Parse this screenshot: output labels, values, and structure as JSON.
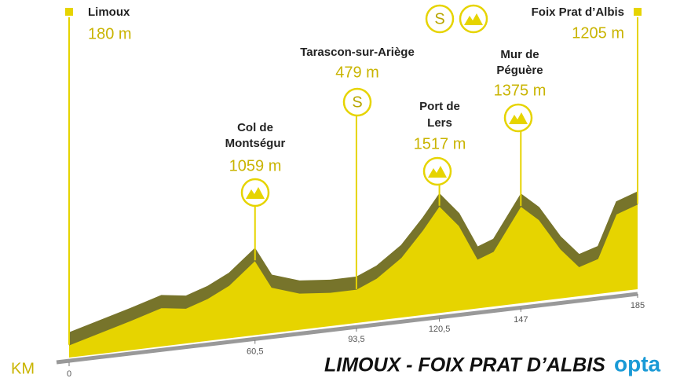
{
  "chart_data": {
    "type": "area",
    "title": "LIMOUX - FOIX PRAT D’ALBIS",
    "x_label": "KM",
    "brand": "opta",
    "x": [
      0,
      10,
      20,
      30,
      38,
      45,
      52,
      60.5,
      66,
      75,
      85,
      93.5,
      100,
      108,
      115,
      120.5,
      127,
      133,
      138,
      147,
      153,
      160,
      166,
      172,
      178,
      185
    ],
    "values": [
      180,
      300,
      420,
      550,
      500,
      600,
      750,
      1059,
      650,
      520,
      480,
      479,
      600,
      850,
      1200,
      1517,
      1200,
      700,
      780,
      1375,
      1150,
      700,
      420,
      500,
      1100,
      1205
    ],
    "color": "#e6d400",
    "edge_color": "#77742b",
    "xlim": [
      0,
      185
    ],
    "xticks": [
      0,
      {
        "value": 60.5,
        "label": "60,5"
      },
      {
        "value": 93.5,
        "label": "93,5"
      },
      {
        "value": 120.5,
        "label": "120,5"
      },
      147,
      185
    ],
    "annotations": [
      {
        "label": [
          "Limoux"
        ],
        "x": 0,
        "value": 180,
        "value_label": "180 m",
        "icons": []
      },
      {
        "label": [
          "Col de",
          "Montségur"
        ],
        "x": 60.5,
        "value": 1059,
        "value_label": "1059 m",
        "icons": [
          "climb"
        ]
      },
      {
        "label": [
          "Tarascon-sur-Ariège"
        ],
        "x": 93.5,
        "value": 479,
        "value_label": "479 m",
        "icons": [
          "S"
        ]
      },
      {
        "label": [
          "Port de",
          "Lers"
        ],
        "x": 120.5,
        "value": 1517,
        "value_label": "1517 m",
        "icons": [
          "climb"
        ]
      },
      {
        "label": [
          "Mur de",
          "Péguère"
        ],
        "x": 147,
        "value": 1375,
        "value_label": "1375 m",
        "icons": [
          "climb"
        ]
      },
      {
        "label": [
          "Foix Prat d’Albis"
        ],
        "x": 185,
        "value": 1205,
        "value_label": "1205 m",
        "icons": [
          "S",
          "climb"
        ]
      }
    ]
  }
}
